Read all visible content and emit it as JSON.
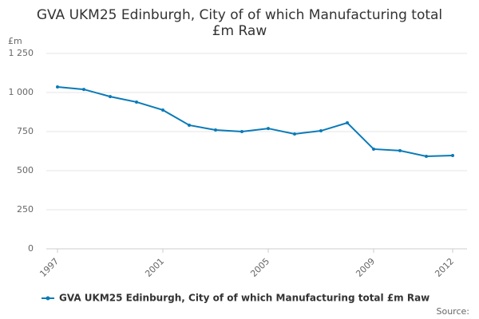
{
  "chart_data": {
    "type": "line",
    "title": "GVA UKM25 Edinburgh, City of of which Manufacturing total",
    "subtitle": "£m Raw",
    "y_label": "£m",
    "x": [
      1997,
      1998,
      1999,
      2000,
      2001,
      2002,
      2003,
      2004,
      2005,
      2006,
      2007,
      2008,
      2009,
      2010,
      2011,
      2012
    ],
    "series": [
      {
        "name": "GVA UKM25 Edinburgh, City of of which Manufacturing total £m Raw",
        "color": "#0a7ab8",
        "values": [
          1036,
          1020,
          974,
          939,
          888,
          791,
          760,
          750,
          770,
          735,
          755,
          806,
          638,
          628,
          592,
          597
        ]
      }
    ],
    "xlim": [
      1997,
      2012
    ],
    "xticks": [
      1997,
      2001,
      2005,
      2009,
      2012
    ],
    "ylim": [
      0,
      1250
    ],
    "yticks": [
      0,
      250,
      500,
      750,
      {
        "value": 1000,
        "label": "1 000"
      },
      {
        "value": 1250,
        "label": "1 250"
      }
    ],
    "grid": true,
    "legend": "bottom",
    "source": "Source:"
  }
}
